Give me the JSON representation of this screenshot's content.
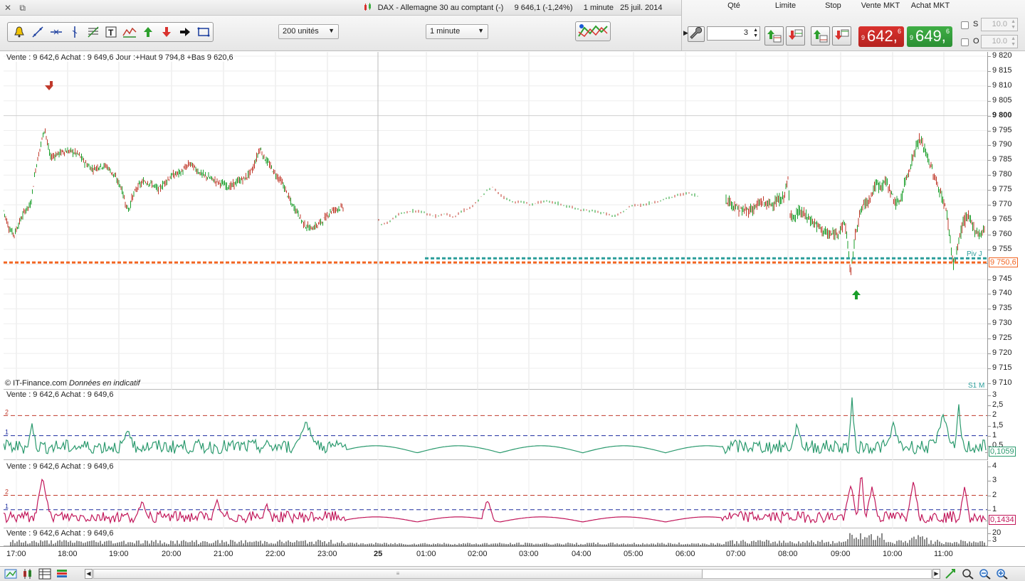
{
  "window": {
    "title": "DAX - Allemagne 30 au comptant (-)",
    "last_price": "9 646,1 (-1,24%)",
    "period": "1 minute",
    "date": "25 juil. 2014"
  },
  "toolbar": {
    "tools": [
      "alert-bell-icon",
      "trendline-icon",
      "horizontal-line-icon",
      "vertical-line-icon",
      "fibonacci-icon",
      "text-tool-icon",
      "indicator-icon",
      "buy-arrow-icon",
      "sell-arrow-icon",
      "right-arrow-icon",
      "rectangle-icon"
    ],
    "units_select": "200 unités",
    "period_select": "1 minute"
  },
  "order_panel": {
    "qty_label": "Qté",
    "qty_value": "3",
    "limit_label": "Limite",
    "stop_label": "Stop",
    "sell_label": "Vente MKT",
    "buy_label": "Achat MKT",
    "sell_prefix": "9",
    "sell_price": "642,",
    "sell_sup": "6",
    "buy_prefix": "9",
    "buy_price": "649,",
    "buy_sup": "6",
    "s_label": "S",
    "o_label": "O",
    "s_value": "10.0",
    "o_value": "10.0",
    "sell_color": "#d9322e",
    "buy_color": "#3fae45"
  },
  "main_chart": {
    "info": "Vente : 9 642,6 Achat : 9 649,6 Jour :+Haut 9 794,8 +Bas 9 620,6",
    "credit": "© IT-Finance.com",
    "credit_note": "Données en indicatif",
    "y_ticks": [
      "9 820",
      "9 815",
      "9 810",
      "9 805",
      "9 800",
      "9 795",
      "9 790",
      "9 785",
      "9 780",
      "9 775",
      "9 770",
      "9 765",
      "9 760",
      "9 755",
      "9 750,6",
      "9 745",
      "9 740",
      "9 735",
      "9 730",
      "9 725",
      "9 720",
      "9 715",
      "9 710"
    ],
    "level_label": "9 750,6",
    "piv_label": "Piv J",
    "s1_label": "S1 M",
    "level_color": "#f26522",
    "piv_color": "#2a9d9a",
    "up_color": "#1a9e2a",
    "down_color": "#c0392b"
  },
  "indicator1": {
    "info": "Vente : 9 642,6 Achat : 9 649,6",
    "ticks": [
      "3",
      "2,5",
      "2",
      "1,5",
      "1",
      "0,5"
    ],
    "value": "0,1059",
    "line_color": "#2b9a6e",
    "label_2": "2",
    "label_1": "1"
  },
  "indicator2": {
    "info": "Vente : 9 642,6 Achat : 9 649,6",
    "ticks": [
      "4",
      "3",
      "2",
      "1"
    ],
    "value": "0,1434",
    "line_color": "#c2185b",
    "label_2": "2",
    "label_1": "1"
  },
  "volume": {
    "info": "Vente : 9 642,6 Achat : 9 649,6",
    "ticks": [
      "20",
      "3"
    ]
  },
  "time_axis": [
    "17:00",
    "18:00",
    "19:00",
    "20:00",
    "21:00",
    "22:00",
    "23:00",
    "25",
    "01:00",
    "02:00",
    "03:00",
    "04:00",
    "05:00",
    "06:00",
    "07:00",
    "08:00",
    "09:00",
    "10:00",
    "11:00"
  ],
  "status_icons": [
    "chart-icon",
    "candles-icon",
    "grid-icon",
    "stack-icon"
  ],
  "zoom_icons": [
    "zoom-fit-icon",
    "zoom-reset-icon",
    "zoom-out-icon",
    "zoom-in-icon"
  ]
}
